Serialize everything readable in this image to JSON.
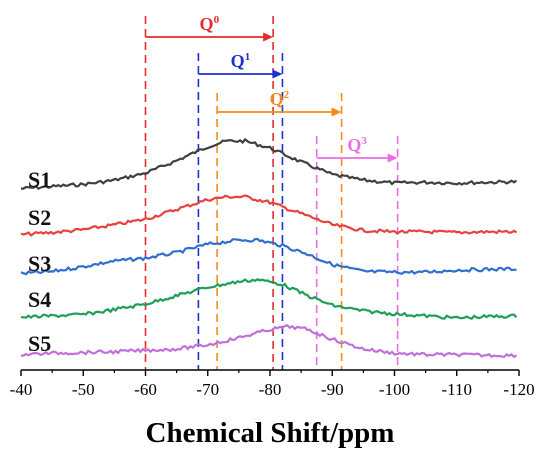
{
  "chart_data": {
    "type": "line",
    "title": "",
    "xlabel": "Chemical Shift/ppm",
    "ylabel": "",
    "xlim": [
      -40,
      -120
    ],
    "x_ticks": [
      -40,
      -50,
      -60,
      -70,
      -80,
      -90,
      -100,
      -110,
      -120
    ],
    "grid": false,
    "legend": "none",
    "series": [
      {
        "name": "S1",
        "color": "#404040",
        "profile": [
          [
            -40,
            0.02
          ],
          [
            -45,
            0.05
          ],
          [
            -50,
            0.08
          ],
          [
            -55,
            0.14
          ],
          [
            -60,
            0.24
          ],
          [
            -65,
            0.42
          ],
          [
            -70,
            0.62
          ],
          [
            -73,
            0.7
          ],
          [
            -76,
            0.7
          ],
          [
            -80,
            0.6
          ],
          [
            -85,
            0.4
          ],
          [
            -90,
            0.22
          ],
          [
            -95,
            0.14
          ],
          [
            -100,
            0.1
          ],
          [
            -105,
            0.11
          ],
          [
            -110,
            0.1
          ],
          [
            -115,
            0.11
          ],
          [
            -120,
            0.12
          ]
        ]
      },
      {
        "name": "S2",
        "color": "#e8423f",
        "profile": [
          [
            -40,
            0.02
          ],
          [
            -45,
            0.05
          ],
          [
            -50,
            0.09
          ],
          [
            -55,
            0.16
          ],
          [
            -60,
            0.24
          ],
          [
            -65,
            0.38
          ],
          [
            -70,
            0.52
          ],
          [
            -73,
            0.56
          ],
          [
            -76,
            0.56
          ],
          [
            -80,
            0.48
          ],
          [
            -85,
            0.32
          ],
          [
            -90,
            0.16
          ],
          [
            -95,
            0.08
          ],
          [
            -100,
            0.06
          ],
          [
            -105,
            0.06
          ],
          [
            -110,
            0.05
          ],
          [
            -115,
            0.06
          ],
          [
            -120,
            0.06
          ]
        ]
      },
      {
        "name": "S3",
        "color": "#2f6fd0",
        "profile": [
          [
            -40,
            0.02
          ],
          [
            -45,
            0.05
          ],
          [
            -50,
            0.12
          ],
          [
            -55,
            0.2
          ],
          [
            -60,
            0.24
          ],
          [
            -65,
            0.32
          ],
          [
            -70,
            0.44
          ],
          [
            -75,
            0.5
          ],
          [
            -78,
            0.5
          ],
          [
            -82,
            0.42
          ],
          [
            -86,
            0.3
          ],
          [
            -90,
            0.15
          ],
          [
            -95,
            0.05
          ],
          [
            -100,
            0.04
          ],
          [
            -105,
            0.04
          ],
          [
            -110,
            0.07
          ],
          [
            -115,
            0.08
          ],
          [
            -120,
            0.09
          ]
        ]
      },
      {
        "name": "S4",
        "color": "#1f9e58",
        "profile": [
          [
            -40,
            0.01
          ],
          [
            -45,
            0.03
          ],
          [
            -50,
            0.05
          ],
          [
            -55,
            0.12
          ],
          [
            -60,
            0.2
          ],
          [
            -65,
            0.32
          ],
          [
            -70,
            0.44
          ],
          [
            -75,
            0.52
          ],
          [
            -78,
            0.55
          ],
          [
            -82,
            0.48
          ],
          [
            -86,
            0.32
          ],
          [
            -90,
            0.18
          ],
          [
            -95,
            0.1
          ],
          [
            -100,
            0.06
          ],
          [
            -105,
            0.03
          ],
          [
            -110,
            0.0
          ],
          [
            -115,
            0.02
          ],
          [
            -120,
            0.03
          ]
        ]
      },
      {
        "name": "S5",
        "color": "#c070d8",
        "profile": [
          [
            -40,
            0.02
          ],
          [
            -45,
            0.04
          ],
          [
            -50,
            0.05
          ],
          [
            -55,
            0.06
          ],
          [
            -60,
            0.08
          ],
          [
            -65,
            0.1
          ],
          [
            -70,
            0.16
          ],
          [
            -75,
            0.26
          ],
          [
            -80,
            0.38
          ],
          [
            -83,
            0.42
          ],
          [
            -86,
            0.38
          ],
          [
            -90,
            0.24
          ],
          [
            -95,
            0.1
          ],
          [
            -100,
            0.04
          ],
          [
            -105,
            0.02
          ],
          [
            -110,
            0.02
          ],
          [
            -115,
            0.01
          ],
          [
            -120,
            0.01
          ]
        ]
      }
    ],
    "regions": [
      {
        "label": "Q",
        "sup": "0",
        "from": -60,
        "to": -80.5,
        "color": "#e52b2b"
      },
      {
        "label": "Q",
        "sup": "1",
        "from": -68.5,
        "to": -82,
        "color": "#1f2fd0"
      },
      {
        "label": "Q",
        "sup": "2",
        "from": -71.5,
        "to": -91.5,
        "color": "#f28c1e"
      },
      {
        "label": "Q",
        "sup": "3",
        "from": -87.5,
        "to": -100.5,
        "color": "#ea6de6"
      }
    ]
  }
}
